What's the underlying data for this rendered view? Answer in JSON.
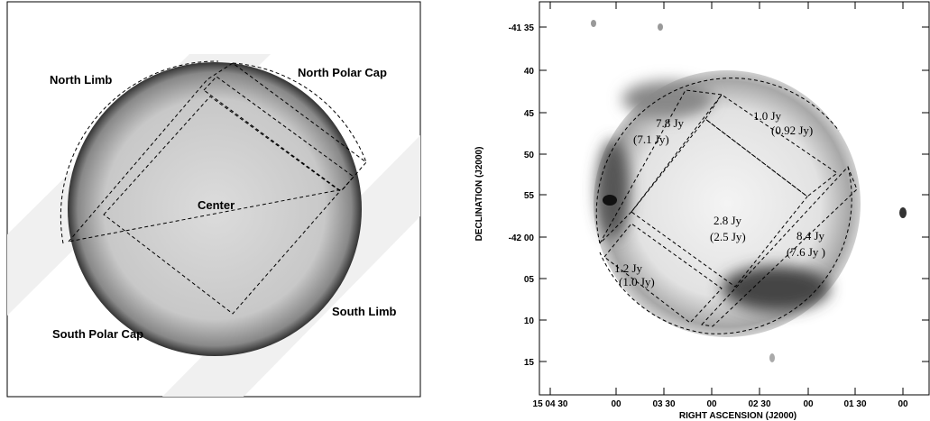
{
  "left_panel": {
    "labels": [
      "North Limb",
      "North Polar Cap",
      "Center",
      "South Limb",
      "South Polar Cap"
    ]
  },
  "right_panel": {
    "y_axis_title": "DECLINATION (J2000)",
    "x_axis_title": "RIGHT ASCENSION (J2000)",
    "y_tick_labels": [
      "-41 35",
      "40",
      "45",
      "50",
      "55",
      "-42 00",
      "05",
      "10",
      "15"
    ],
    "x_tick_labels": [
      "15 04 30",
      "00",
      "03 30",
      "00",
      "02 30",
      "00",
      "01 30",
      "00"
    ],
    "regions": [
      {
        "flux": "7.8 Jy",
        "flux_alt": "(7.1 Jy)"
      },
      {
        "flux": "1.0 Jy",
        "flux_alt": "(0.92 Jy)"
      },
      {
        "flux": "2.8 Jy",
        "flux_alt": "(2.5 Jy)"
      },
      {
        "flux": "8.4 Jy",
        "flux_alt": "(7.6 Jy )"
      },
      {
        "flux": "1.2 Jy",
        "flux_alt": "(1.0 Jy)"
      }
    ]
  }
}
